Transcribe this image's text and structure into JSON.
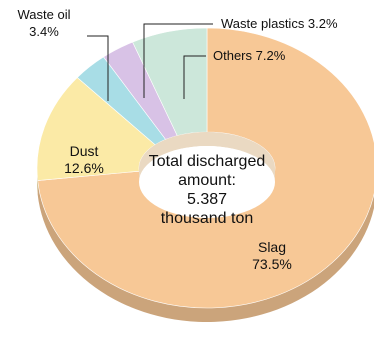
{
  "chart_data": {
    "type": "pie",
    "style": "3d-donut",
    "center_label": [
      "Total discharged",
      "amount:",
      "5.387",
      "thousand ton"
    ],
    "series": [
      {
        "name": "Slag",
        "value": 73.5,
        "label": "Slag",
        "value_label": "73.5%",
        "color": "#f7c896"
      },
      {
        "name": "Dust",
        "value": 12.6,
        "label": "Dust",
        "value_label": "12.6%",
        "color": "#fbeaa6"
      },
      {
        "name": "Waste oil",
        "value": 3.4,
        "label": "Waste oil",
        "value_label": "3.4%",
        "color": "#a8dde6"
      },
      {
        "name": "Waste plastics",
        "value": 3.2,
        "label": "Waste plastics 3.2%",
        "value_label": "",
        "color": "#d8c2e6"
      },
      {
        "name": "Others",
        "value": 7.2,
        "label": "Others 7.2%",
        "value_label": "",
        "color": "#cce7da"
      }
    ]
  }
}
